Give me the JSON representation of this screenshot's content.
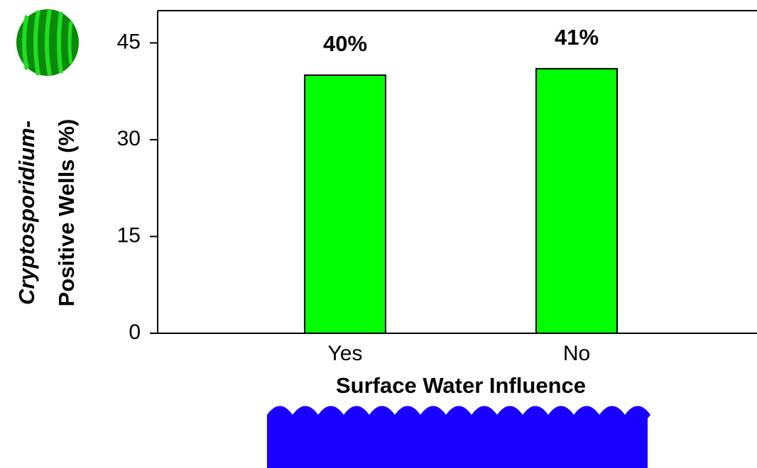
{
  "chart_data": {
    "type": "bar",
    "categories": [
      "Yes",
      "No"
    ],
    "values": [
      40,
      41
    ],
    "value_labels": [
      "40%",
      "41%"
    ],
    "color": "#00ff00",
    "ylim": [
      0,
      50
    ],
    "yticks": [
      0,
      15,
      30,
      45
    ],
    "y_label": [
      "Cryptosporidium-",
      "Positive Wells (%)"
    ],
    "x_label": "Surface Water Influence"
  }
}
